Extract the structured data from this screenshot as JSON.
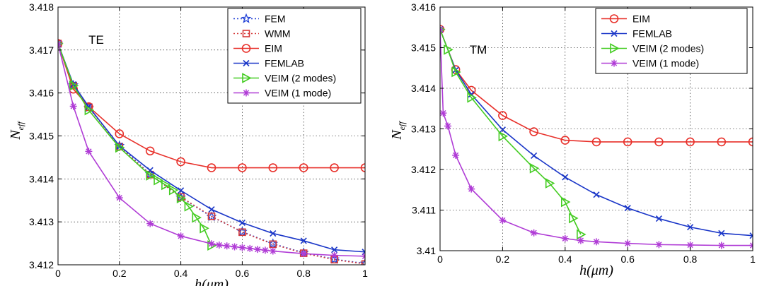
{
  "chart_data": [
    {
      "type": "line",
      "panel_label": "TE",
      "xlabel": "h(μm)",
      "ylabel_main": "N",
      "ylabel_sub": "eff",
      "xlim": [
        0,
        1
      ],
      "ylim": [
        3.412,
        3.418
      ],
      "xticks": [
        0,
        0.2,
        0.4,
        0.6,
        0.8,
        1
      ],
      "xtick_labels": [
        "0",
        "0.2",
        "0.4",
        "0.6",
        "0.8",
        "1"
      ],
      "yticks": [
        3.412,
        3.413,
        3.414,
        3.415,
        3.416,
        3.417,
        3.418
      ],
      "ytick_labels": [
        "3.412",
        "3.413",
        "3.414",
        "3.415",
        "3.416",
        "3.417",
        "3.418"
      ],
      "grid": true,
      "legend_position": "top-right",
      "series": [
        {
          "name": "FEM",
          "color": "#1f3fd6",
          "dash": "dotted",
          "marker": "star",
          "x": [
            0,
            0.05,
            0.1,
            0.2,
            0.3,
            0.4,
            0.5,
            0.6,
            0.7,
            0.8,
            0.9,
            1
          ],
          "y": [
            3.41715,
            3.41618,
            3.41566,
            3.41477,
            3.41411,
            3.41357,
            3.41312,
            3.41277,
            3.41249,
            3.41228,
            3.41213,
            3.41203
          ]
        },
        {
          "name": "WMM",
          "color": "#d63a3a",
          "dash": "dotted",
          "marker": "square",
          "x": [
            0,
            0.05,
            0.1,
            0.2,
            0.3,
            0.4,
            0.5,
            0.6,
            0.7,
            0.8,
            0.9,
            1
          ],
          "y": [
            3.41715,
            3.41617,
            3.41567,
            3.41475,
            3.4141,
            3.41358,
            3.41313,
            3.41276,
            3.41248,
            3.41227,
            3.41212,
            3.41202
          ]
        },
        {
          "name": "EIM",
          "color": "#e8302a",
          "dash": "solid",
          "marker": "circle",
          "x": [
            0,
            0.05,
            0.1,
            0.2,
            0.3,
            0.4,
            0.5,
            0.6,
            0.7,
            0.8,
            0.9,
            1
          ],
          "y": [
            3.41715,
            3.41609,
            3.41568,
            3.41505,
            3.41465,
            3.4144,
            3.41426,
            3.41426,
            3.41426,
            3.41426,
            3.41426,
            3.41426
          ]
        },
        {
          "name": "FEMLAB",
          "color": "#1a36c8",
          "dash": "solid",
          "marker": "x",
          "x": [
            0,
            0.05,
            0.1,
            0.2,
            0.3,
            0.4,
            0.5,
            0.6,
            0.7,
            0.8,
            0.9,
            1
          ],
          "y": [
            3.41715,
            3.4162,
            3.41568,
            3.41477,
            3.4142,
            3.41373,
            3.41329,
            3.41298,
            3.41273,
            3.41256,
            3.41235,
            3.4123
          ]
        },
        {
          "name": "VEIM (2 modes)",
          "color": "#44cc22",
          "dash": "solid",
          "marker": "triangle-right",
          "x": [
            0,
            0.05,
            0.1,
            0.2,
            0.3,
            0.325,
            0.35,
            0.375,
            0.4,
            0.425,
            0.45,
            0.475,
            0.5
          ],
          "y": [
            3.41715,
            3.41617,
            3.4156,
            3.41473,
            3.41408,
            3.41397,
            3.41386,
            3.41374,
            3.41355,
            3.41336,
            3.4131,
            3.41285,
            3.41245
          ]
        },
        {
          "name": "VEIM (1 mode)",
          "color": "#b03cd6",
          "dash": "solid",
          "marker": "asterisk",
          "x": [
            0,
            0.05,
            0.1,
            0.2,
            0.3,
            0.4,
            0.5,
            0.525,
            0.55,
            0.575,
            0.6,
            0.625,
            0.65,
            0.675,
            0.7,
            0.8,
            0.9,
            1
          ],
          "y": [
            3.41715,
            3.41569,
            3.41464,
            3.41356,
            3.41296,
            3.41267,
            3.41249,
            3.41246,
            3.41244,
            3.41242,
            3.4124,
            3.41238,
            3.41236,
            3.41234,
            3.41232,
            3.41226,
            3.41222,
            3.4122
          ]
        }
      ]
    },
    {
      "type": "line",
      "panel_label": "TM",
      "xlabel": "h(μm)",
      "ylabel_main": "N",
      "ylabel_sub": "eff",
      "xlim": [
        0,
        1
      ],
      "ylim": [
        3.41,
        3.416
      ],
      "xticks": [
        0,
        0.2,
        0.4,
        0.6,
        0.8,
        1
      ],
      "xtick_labels": [
        "0",
        "0.2",
        "0.4",
        "0.6",
        "0.8",
        "1"
      ],
      "yticks": [
        3.41,
        3.411,
        3.412,
        3.413,
        3.414,
        3.415,
        3.416
      ],
      "ytick_labels": [
        "3.41",
        "3.411",
        "3.412",
        "3.413",
        "3.414",
        "3.415",
        "3.416"
      ],
      "grid": true,
      "legend_position": "top-right",
      "series": [
        {
          "name": "EIM",
          "color": "#e8302a",
          "dash": "solid",
          "marker": "circle",
          "x": [
            0,
            0.05,
            0.1,
            0.2,
            0.3,
            0.4,
            0.5,
            0.6,
            0.7,
            0.8,
            0.9,
            1
          ],
          "y": [
            3.41545,
            3.41446,
            3.41395,
            3.41333,
            3.41293,
            3.41272,
            3.41268,
            3.41268,
            3.41268,
            3.41268,
            3.41268,
            3.41268
          ]
        },
        {
          "name": "FEMLAB",
          "color": "#1a36c8",
          "dash": "solid",
          "marker": "x",
          "x": [
            0,
            0.05,
            0.1,
            0.2,
            0.3,
            0.4,
            0.5,
            0.6,
            0.7,
            0.8,
            0.9,
            1
          ],
          "y": [
            3.41545,
            3.41445,
            3.41385,
            3.41298,
            3.41234,
            3.41181,
            3.41138,
            3.41105,
            3.41079,
            3.41058,
            3.41043,
            3.41037
          ]
        },
        {
          "name": "VEIM (2 modes)",
          "color": "#44cc22",
          "dash": "solid",
          "marker": "triangle-right",
          "x": [
            0,
            0.025,
            0.05,
            0.1,
            0.2,
            0.3,
            0.35,
            0.4,
            0.425,
            0.45
          ],
          "y": [
            3.41545,
            3.41495,
            3.4144,
            3.41377,
            3.41282,
            3.41203,
            3.41166,
            3.4112,
            3.4108,
            3.4104
          ]
        },
        {
          "name": "VEIM (1 mode)",
          "color": "#b03cd6",
          "dash": "solid",
          "marker": "asterisk",
          "x": [
            0,
            0.01,
            0.025,
            0.05,
            0.1,
            0.2,
            0.3,
            0.4,
            0.45,
            0.5,
            0.6,
            0.7,
            0.8,
            0.9,
            1
          ],
          "y": [
            3.41545,
            3.41339,
            3.41307,
            3.41235,
            3.41152,
            3.41075,
            3.41044,
            3.4103,
            3.41025,
            3.41022,
            3.41018,
            3.41015,
            3.41014,
            3.41013,
            3.41013
          ]
        }
      ]
    }
  ]
}
